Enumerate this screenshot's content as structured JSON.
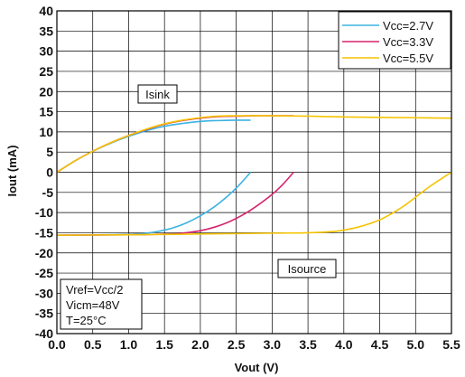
{
  "chart_data": {
    "type": "line",
    "xlabel": "Vout (V)",
    "ylabel": "Iout (mA)",
    "xlim": [
      0,
      5.5
    ],
    "ylim": [
      -40,
      40
    ],
    "x_ticks": [
      0.0,
      0.5,
      1.0,
      1.5,
      2.0,
      2.5,
      3.0,
      3.5,
      4.0,
      4.5,
      5.0,
      5.5
    ],
    "x_tick_labels": [
      "0.0",
      "0.5",
      "1.0",
      "1.5",
      "2.0",
      "2.5",
      "3.0",
      "3.5",
      "4.0",
      "4.5",
      "5.0",
      "5.5"
    ],
    "y_ticks": [
      40,
      35,
      30,
      25,
      20,
      15,
      10,
      5,
      0,
      -5,
      -10,
      -15,
      -20,
      -25,
      -30,
      -35,
      -40
    ],
    "y_tick_labels": [
      "40",
      "35",
      "30",
      "25",
      "20",
      "15",
      "10",
      "5",
      "0",
      "-5",
      "-10",
      "-15",
      "-20",
      "-25",
      "-30",
      "-35",
      "-40"
    ],
    "grid": true,
    "legend_position": "top-right",
    "series": [
      {
        "name": "Vcc=2.7V",
        "color": "#3bb3e0",
        "sink": [
          [
            0,
            0
          ],
          [
            0.25,
            2.8
          ],
          [
            0.5,
            5.2
          ],
          [
            0.75,
            7.2
          ],
          [
            1.0,
            8.9
          ],
          [
            1.25,
            10.3
          ],
          [
            1.5,
            11.4
          ],
          [
            1.75,
            12.1
          ],
          [
            2.0,
            12.6
          ],
          [
            2.25,
            12.8
          ],
          [
            2.5,
            12.9
          ],
          [
            2.7,
            12.9
          ]
        ],
        "source": [
          [
            0,
            -15.6
          ],
          [
            0.5,
            -15.55
          ],
          [
            1.0,
            -15.4
          ],
          [
            1.2,
            -15.2
          ],
          [
            1.4,
            -14.7
          ],
          [
            1.6,
            -13.9
          ],
          [
            1.8,
            -12.6
          ],
          [
            2.0,
            -10.8
          ],
          [
            2.2,
            -8.5
          ],
          [
            2.4,
            -5.6
          ],
          [
            2.55,
            -3.0
          ],
          [
            2.7,
            0
          ]
        ]
      },
      {
        "name": "Vcc=3.3V",
        "color": "#d6246e",
        "sink": [
          [
            0,
            0
          ],
          [
            0.25,
            2.8
          ],
          [
            0.5,
            5.2
          ],
          [
            0.75,
            7.3
          ],
          [
            1.0,
            9.1
          ],
          [
            1.25,
            10.6
          ],
          [
            1.5,
            11.9
          ],
          [
            1.75,
            12.8
          ],
          [
            2.0,
            13.4
          ],
          [
            2.25,
            13.8
          ],
          [
            2.5,
            13.9
          ],
          [
            2.75,
            14.0
          ],
          [
            3.0,
            14.0
          ],
          [
            3.3,
            14.0
          ]
        ],
        "source": [
          [
            0,
            -15.6
          ],
          [
            1.0,
            -15.5
          ],
          [
            1.6,
            -15.3
          ],
          [
            1.8,
            -15.0
          ],
          [
            2.0,
            -14.5
          ],
          [
            2.2,
            -13.6
          ],
          [
            2.4,
            -12.3
          ],
          [
            2.6,
            -10.5
          ],
          [
            2.8,
            -8.2
          ],
          [
            3.0,
            -5.5
          ],
          [
            3.15,
            -3.0
          ],
          [
            3.3,
            0
          ]
        ]
      },
      {
        "name": "Vcc=5.5V",
        "color": "#f5c400",
        "sink": [
          [
            0,
            0
          ],
          [
            0.25,
            2.8
          ],
          [
            0.5,
            5.2
          ],
          [
            0.75,
            7.3
          ],
          [
            1.0,
            9.1
          ],
          [
            1.25,
            10.7
          ],
          [
            1.5,
            12.0
          ],
          [
            1.75,
            12.9
          ],
          [
            2.0,
            13.5
          ],
          [
            2.25,
            13.9
          ],
          [
            2.5,
            14.0
          ],
          [
            3.0,
            14.0
          ],
          [
            3.5,
            13.9
          ],
          [
            4.0,
            13.7
          ],
          [
            4.5,
            13.6
          ],
          [
            5.0,
            13.5
          ],
          [
            5.5,
            13.4
          ]
        ],
        "source": [
          [
            0,
            -15.6
          ],
          [
            1.0,
            -15.5
          ],
          [
            2.0,
            -15.3
          ],
          [
            3.0,
            -15.1
          ],
          [
            3.5,
            -15.0
          ],
          [
            3.9,
            -14.6
          ],
          [
            4.2,
            -13.6
          ],
          [
            4.5,
            -11.8
          ],
          [
            4.8,
            -8.8
          ],
          [
            5.0,
            -6.2
          ],
          [
            5.2,
            -3.5
          ],
          [
            5.5,
            0
          ]
        ]
      }
    ],
    "annotations": {
      "sink_label": "Isink",
      "source_label": "Isource",
      "conditions": [
        "Vref=Vcc/2",
        "Vicm=48V",
        "T=25°C"
      ]
    }
  }
}
